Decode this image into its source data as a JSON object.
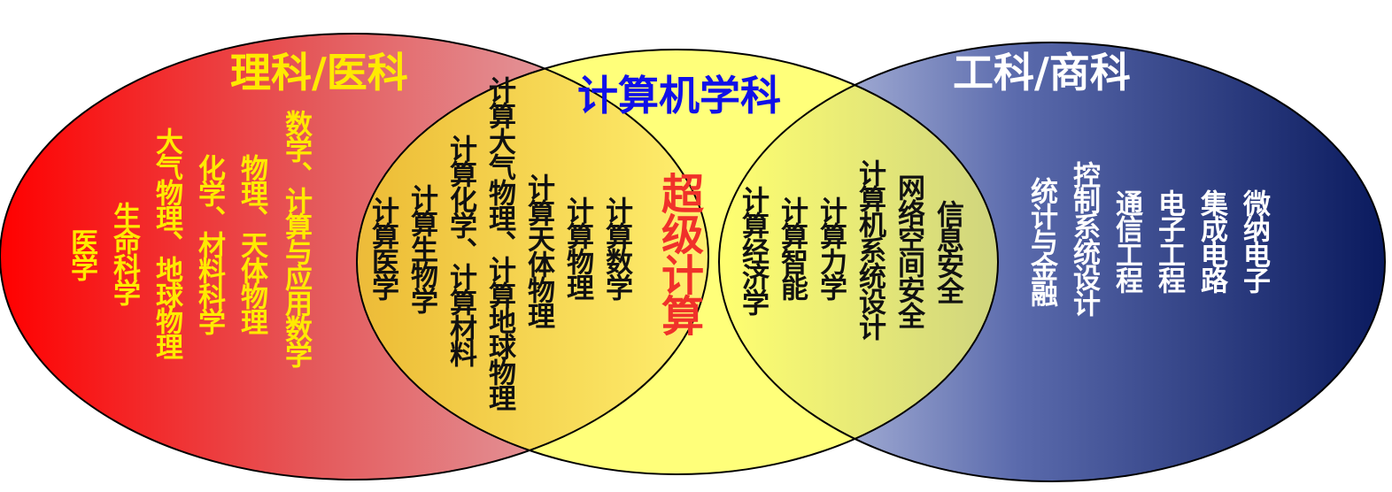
{
  "colors": {
    "science_fill_left": "#ff0000",
    "science_fill_right": "#e2bcc2",
    "engineering_fill_left": "#d4daf0",
    "engineering_fill_right": "#0a1a5e",
    "computing_fill": "#ffff7a",
    "science_text": "#ffea00",
    "computing_title": "#1010e8",
    "supercomputing_text": "#f0312a"
  },
  "circles": {
    "science": {
      "title": "理科/医科",
      "items": [
        "医学",
        "生命科学",
        "大气物理、地球物理",
        "化学、材料科学",
        "物理、天体物理",
        "数学、计算与应用数学"
      ]
    },
    "computing": {
      "title": "计算机学科",
      "center": "超级计算"
    },
    "engineering": {
      "title": "工科/商科",
      "items": [
        "统计与金融",
        "控制系统设计",
        "通信工程",
        "电子工程",
        "集成电路",
        "微纳电子"
      ]
    }
  },
  "overlaps": {
    "science_computing": [
      "计算医学",
      "计算生物学",
      "计算化学、计算材料",
      "计算大气物理、计算地球物理",
      "计算天体物理",
      "计算物理",
      "计算数学"
    ],
    "computing_engineering": [
      "计算经济学",
      "计算智能",
      "计算力学",
      "计算机系统设计",
      "网络空间安全",
      "信息安全"
    ]
  }
}
